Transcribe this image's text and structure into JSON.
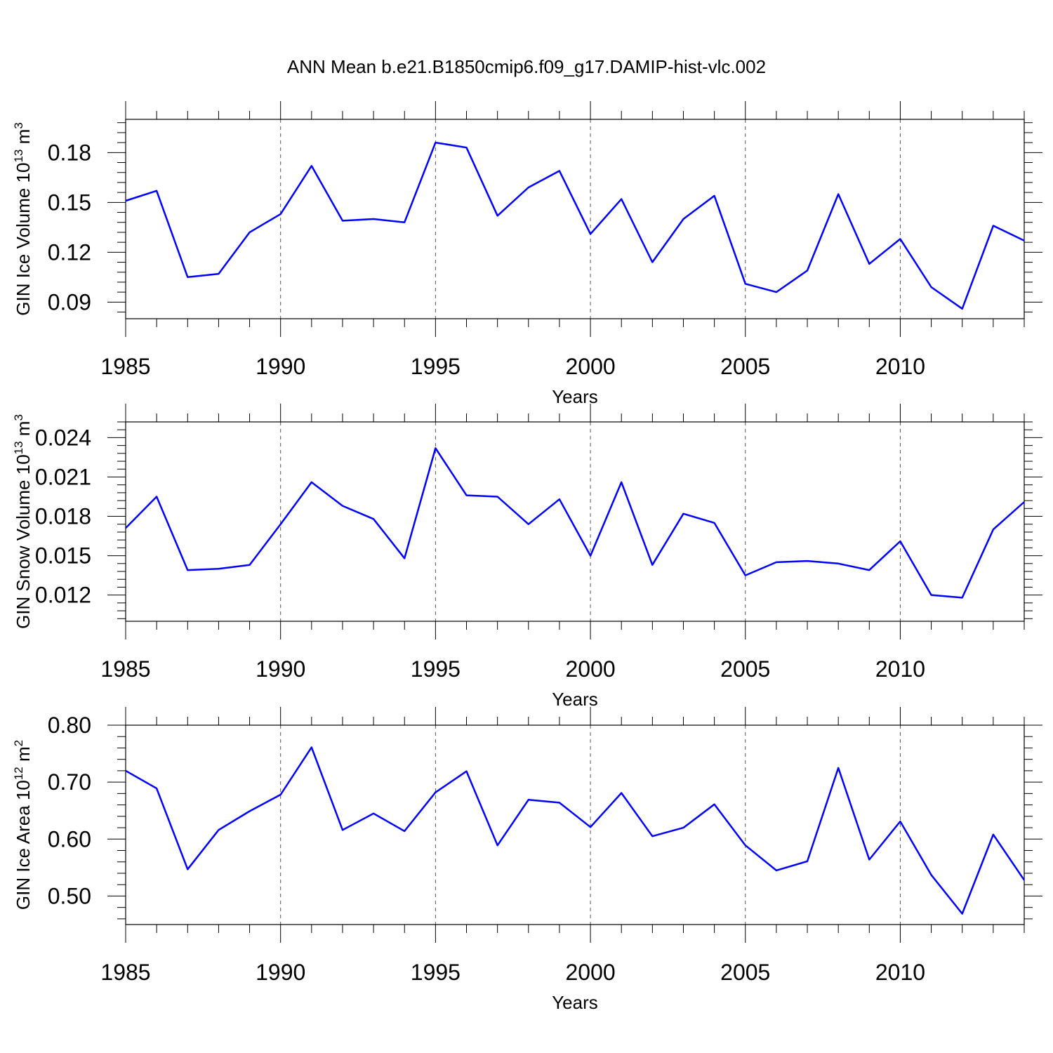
{
  "title": "ANN Mean b.e21.B1850cmip6.f09_g17.DAMIP-hist-vlc.002",
  "chart_data": [
    {
      "type": "line",
      "title": "ANN Mean b.e21.B1850cmip6.f09_g17.DAMIP-hist-vlc.002",
      "xlabel": "Years",
      "ylabel_main": "GIN Ice Volume 10",
      "ylabel_exp": "13",
      "ylabel_unit": " m",
      "ylabel_unit_exp": "3",
      "xlim": [
        1985,
        2014
      ],
      "ylim": [
        0.08,
        0.2
      ],
      "xticks": [
        "1985",
        "1990",
        "1995",
        "2000",
        "2005",
        "2010"
      ],
      "yticks": [
        "0.09",
        "0.12",
        "0.15",
        "0.18"
      ],
      "ytick_values": [
        0.09,
        0.12,
        0.15,
        0.18
      ],
      "grid": "dashed vertical at labeled x ticks",
      "color": "#0000ff",
      "x": [
        1985,
        1986,
        1987,
        1988,
        1989,
        1990,
        1991,
        1992,
        1993,
        1994,
        1995,
        1996,
        1997,
        1998,
        1999,
        2000,
        2001,
        2002,
        2003,
        2004,
        2005,
        2006,
        2007,
        2008,
        2009,
        2010,
        2011,
        2012,
        2013,
        2014
      ],
      "values": [
        0.151,
        0.157,
        0.105,
        0.107,
        0.132,
        0.143,
        0.172,
        0.139,
        0.14,
        0.138,
        0.186,
        0.183,
        0.142,
        0.159,
        0.169,
        0.131,
        0.152,
        0.114,
        0.14,
        0.154,
        0.101,
        0.096,
        0.109,
        0.155,
        0.113,
        0.128,
        0.099,
        0.086,
        0.136,
        0.127
      ]
    },
    {
      "type": "line",
      "xlabel": "Years",
      "ylabel_main": "GIN Snow Volume 10",
      "ylabel_exp": "13",
      "ylabel_unit": " m",
      "ylabel_unit_exp": "3",
      "xlim": [
        1985,
        2014
      ],
      "ylim": [
        0.01,
        0.0252
      ],
      "xticks": [
        "1985",
        "1990",
        "1995",
        "2000",
        "2005",
        "2010"
      ],
      "yticks": [
        "0.012",
        "0.015",
        "0.018",
        "0.021",
        "0.024"
      ],
      "ytick_values": [
        0.012,
        0.015,
        0.018,
        0.021,
        0.024
      ],
      "grid": "dashed vertical at labeled x ticks",
      "color": "#0000ff",
      "x": [
        1985,
        1986,
        1987,
        1988,
        1989,
        1990,
        1991,
        1992,
        1993,
        1994,
        1995,
        1996,
        1997,
        1998,
        1999,
        2000,
        2001,
        2002,
        2003,
        2004,
        2005,
        2006,
        2007,
        2008,
        2009,
        2010,
        2011,
        2012,
        2013,
        2014
      ],
      "values": [
        0.0171,
        0.0195,
        0.0139,
        0.014,
        0.0143,
        0.0174,
        0.0206,
        0.0188,
        0.0178,
        0.0148,
        0.0232,
        0.0196,
        0.0195,
        0.0174,
        0.0193,
        0.015,
        0.0206,
        0.0143,
        0.0182,
        0.0175,
        0.0135,
        0.0145,
        0.0146,
        0.0144,
        0.0139,
        0.0161,
        0.012,
        0.0118,
        0.017,
        0.0191
      ]
    },
    {
      "type": "line",
      "xlabel": "Years",
      "ylabel_main": "GIN Ice Area 10",
      "ylabel_exp": "12",
      "ylabel_unit": " m",
      "ylabel_unit_exp": "2",
      "xlim": [
        1985,
        2014
      ],
      "ylim": [
        0.45,
        0.8
      ],
      "xticks": [
        "1985",
        "1990",
        "1995",
        "2000",
        "2005",
        "2010"
      ],
      "yticks": [
        "0.50",
        "0.60",
        "0.70",
        "0.80"
      ],
      "ytick_values": [
        0.5,
        0.6,
        0.7,
        0.8
      ],
      "grid": "dashed vertical at labeled x ticks",
      "color": "#0000ff",
      "x": [
        1985,
        1986,
        1987,
        1988,
        1989,
        1990,
        1991,
        1992,
        1993,
        1994,
        1995,
        1996,
        1997,
        1998,
        1999,
        2000,
        2001,
        2002,
        2003,
        2004,
        2005,
        2006,
        2007,
        2008,
        2009,
        2010,
        2011,
        2012,
        2013,
        2014
      ],
      "values": [
        0.72,
        0.689,
        0.547,
        0.616,
        0.649,
        0.678,
        0.761,
        0.616,
        0.645,
        0.614,
        0.682,
        0.719,
        0.589,
        0.669,
        0.664,
        0.621,
        0.681,
        0.605,
        0.62,
        0.661,
        0.589,
        0.545,
        0.561,
        0.725,
        0.564,
        0.631,
        0.537,
        0.469,
        0.608,
        0.528
      ]
    }
  ]
}
